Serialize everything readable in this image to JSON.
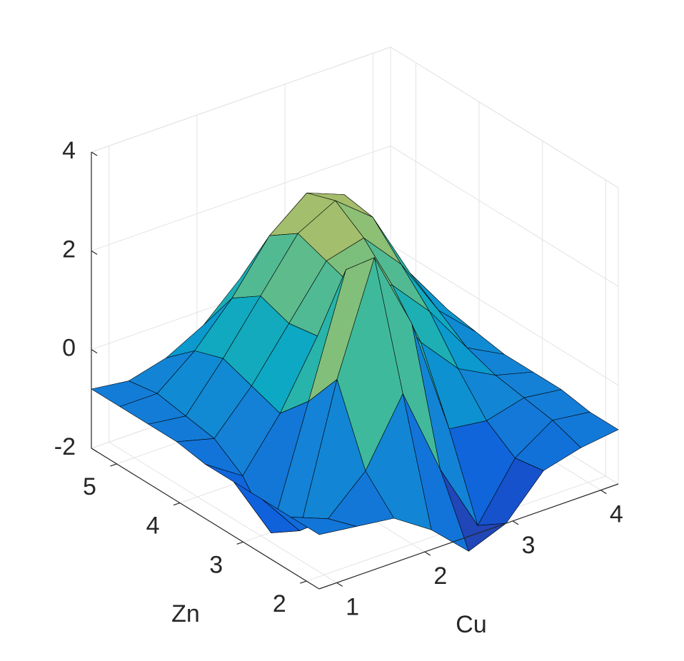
{
  "chart_data": {
    "type": "surface",
    "x_label": "Cu",
    "y_label": "Zn",
    "x": [
      0.8,
      1.225,
      1.65,
      2.075,
      2.5,
      2.925,
      3.35,
      3.775,
      4.2
    ],
    "y": [
      1.8,
      2.25,
      2.7,
      3.15,
      3.6,
      4.05,
      4.5,
      4.95,
      5.4
    ],
    "z": [
      [
        -0.9,
        -1.0,
        -1.1,
        -1.6,
        -2.3,
        -2.0,
        -1.2,
        -1.0,
        -0.9
      ],
      [
        -0.9,
        -1.2,
        -0.5,
        0.8,
        -1.0,
        -2.4,
        -1.3,
        -0.8,
        -0.9
      ],
      [
        -0.9,
        -1.8,
        1.0,
        3.2,
        1.6,
        -0.8,
        -0.9,
        -0.7,
        -0.8
      ],
      [
        -0.9,
        -2.2,
        0.2,
        2.6,
        1.8,
        0.6,
        -0.2,
        -0.6,
        -0.8
      ],
      [
        -0.9,
        -1.4,
        -0.4,
        0.9,
        1.6,
        1.4,
        0.6,
        -0.4,
        -0.8
      ],
      [
        -0.8,
        -1.0,
        -0.2,
        0.8,
        1.8,
        2.0,
        1.2,
        0.0,
        -0.7
      ],
      [
        -0.8,
        -0.9,
        0.0,
        1.0,
        2.0,
        2.4,
        1.8,
        0.4,
        -0.6
      ],
      [
        -0.8,
        -0.8,
        -0.2,
        0.6,
        1.6,
        2.2,
        1.9,
        0.6,
        -0.4
      ],
      [
        -0.8,
        -0.9,
        -0.7,
        -0.3,
        0.4,
        1.0,
        1.0,
        0.3,
        -0.3
      ]
    ],
    "xlim": [
      0.8,
      4.2
    ],
    "ylim": [
      1.8,
      5.4
    ],
    "zlim": [
      -2,
      4
    ],
    "xticks": [
      1,
      2,
      3,
      4
    ],
    "yticks": [
      2,
      3,
      4,
      5
    ],
    "zticks": [
      -2,
      0,
      2,
      4
    ],
    "grid": true,
    "colormap": "parula",
    "edge_color": "#000000"
  }
}
